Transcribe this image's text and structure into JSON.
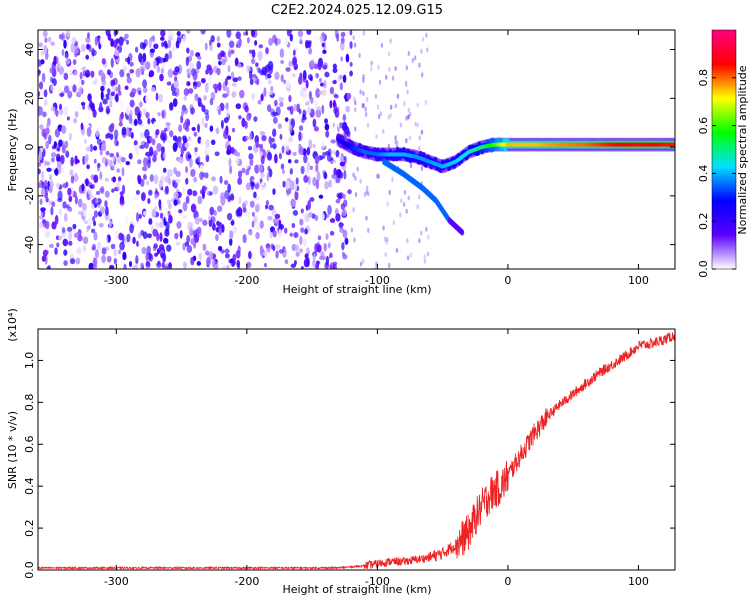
{
  "chart_data": [
    {
      "type": "heatmap",
      "title": "C2E2.2024.025.12.09.G15",
      "xlabel": "Height of straight line (km)",
      "ylabel": "Frequency (Hz)",
      "xlim": [
        -360,
        128
      ],
      "ylim": [
        -50,
        48
      ],
      "xticks": [
        -300,
        -200,
        -100,
        0,
        100
      ],
      "yticks": [
        -40,
        -20,
        0,
        20,
        40
      ],
      "colorbar": {
        "label": "Normalized spectral amplitude",
        "range": [
          0,
          1
        ],
        "ticks": [
          "0.0",
          "0.2",
          "0.4",
          "0.6",
          "0.8"
        ],
        "tick_values": [
          0.0,
          0.2,
          0.4,
          0.6,
          0.8
        ],
        "stops": [
          "#ffffff",
          "#5a00ff",
          "#0000ff",
          "#00e0ff",
          "#00ff00",
          "#ffff00",
          "#ff0000",
          "#ff0080"
        ]
      },
      "noise_region": {
        "x_from": -360,
        "x_to": -120,
        "amplitude": 0.15
      },
      "signal_trace": [
        {
          "x": -130,
          "y": 3,
          "amp": 0.25
        },
        {
          "x": -120,
          "y": 0,
          "amp": 0.3
        },
        {
          "x": -110,
          "y": -2,
          "amp": 0.35
        },
        {
          "x": -100,
          "y": -3,
          "amp": 0.35
        },
        {
          "x": -90,
          "y": -3,
          "amp": 0.4
        },
        {
          "x": -80,
          "y": -3,
          "amp": 0.4
        },
        {
          "x": -70,
          "y": -4,
          "amp": 0.38
        },
        {
          "x": -60,
          "y": -6,
          "amp": 0.38
        },
        {
          "x": -50,
          "y": -8,
          "amp": 0.4
        },
        {
          "x": -40,
          "y": -6,
          "amp": 0.42
        },
        {
          "x": -30,
          "y": -2,
          "amp": 0.45
        },
        {
          "x": -20,
          "y": 0,
          "amp": 0.5
        },
        {
          "x": -10,
          "y": 1,
          "amp": 0.6
        },
        {
          "x": 0,
          "y": 1,
          "amp": 0.75
        },
        {
          "x": 20,
          "y": 1,
          "amp": 0.75
        },
        {
          "x": 40,
          "y": 1,
          "amp": 0.78
        },
        {
          "x": 60,
          "y": 1,
          "amp": 0.8
        },
        {
          "x": 80,
          "y": 1,
          "amp": 0.85
        },
        {
          "x": 100,
          "y": 1,
          "amp": 0.88
        },
        {
          "x": 120,
          "y": 1,
          "amp": 0.85
        }
      ],
      "branch_trace": [
        {
          "x": -95,
          "y": -6
        },
        {
          "x": -80,
          "y": -11
        },
        {
          "x": -65,
          "y": -17
        },
        {
          "x": -55,
          "y": -22
        },
        {
          "x": -45,
          "y": -30
        },
        {
          "x": -35,
          "y": -35
        }
      ]
    },
    {
      "type": "line",
      "xlabel": "Height of straight line (km)",
      "ylabel": "SNR (10 * v/v)",
      "y_multiplier": "(x10⁴)",
      "xlim": [
        -360,
        128
      ],
      "ylim": [
        0,
        1.15
      ],
      "xticks": [
        -300,
        -200,
        -100,
        0,
        100
      ],
      "yticks": [
        0.0,
        0.2,
        0.4,
        0.6,
        0.8,
        1.0
      ],
      "color": "#ee2222",
      "x": [
        -360,
        -300,
        -200,
        -130,
        -120,
        -110,
        -100,
        -90,
        -80,
        -70,
        -60,
        -50,
        -40,
        -30,
        -25,
        -20,
        -15,
        -10,
        -5,
        0,
        10,
        20,
        30,
        40,
        50,
        60,
        70,
        80,
        90,
        100,
        110,
        120,
        128
      ],
      "values": [
        0.01,
        0.01,
        0.01,
        0.01,
        0.015,
        0.02,
        0.03,
        0.04,
        0.04,
        0.05,
        0.06,
        0.08,
        0.12,
        0.18,
        0.25,
        0.3,
        0.35,
        0.38,
        0.4,
        0.45,
        0.55,
        0.65,
        0.73,
        0.79,
        0.84,
        0.89,
        0.94,
        0.98,
        1.02,
        1.07,
        1.08,
        1.1,
        1.12
      ]
    }
  ]
}
